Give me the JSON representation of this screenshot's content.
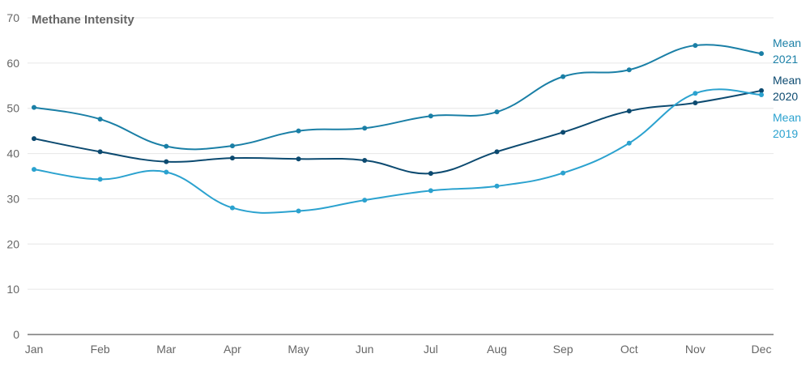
{
  "chart_data": {
    "type": "line",
    "title": "Methane Intensity",
    "xlabel": "",
    "ylabel": "",
    "categories": [
      "Jan",
      "Feb",
      "Mar",
      "Apr",
      "May",
      "Jun",
      "Jul",
      "Aug",
      "Sep",
      "Oct",
      "Nov",
      "Dec"
    ],
    "ylim": [
      0,
      70
    ],
    "yticks": [
      0,
      10,
      20,
      30,
      40,
      50,
      60,
      70
    ],
    "grid": true,
    "legend": "inline labels at line ends (right)",
    "series": [
      {
        "name": "Mean 2021",
        "label_lines": [
          "Mean",
          "2021"
        ],
        "color": "#1a7fa6",
        "values": [
          50.2,
          47.6,
          41.6,
          41.7,
          45.0,
          45.6,
          48.3,
          49.2,
          57.0,
          58.5,
          63.9,
          62.1
        ]
      },
      {
        "name": "Mean 2020",
        "label_lines": [
          "Mean",
          "2020"
        ],
        "color": "#0c4a70",
        "values": [
          43.3,
          40.4,
          38.2,
          39.0,
          38.8,
          38.5,
          35.6,
          40.4,
          44.7,
          49.4,
          51.2,
          53.9
        ]
      },
      {
        "name": "Mean 2019",
        "label_lines": [
          "Mean",
          "2019"
        ],
        "color": "#2ba2cf",
        "values": [
          36.5,
          34.3,
          35.9,
          28.0,
          27.3,
          29.7,
          31.8,
          32.8,
          35.7,
          42.3,
          53.3,
          53.0
        ]
      }
    ]
  }
}
